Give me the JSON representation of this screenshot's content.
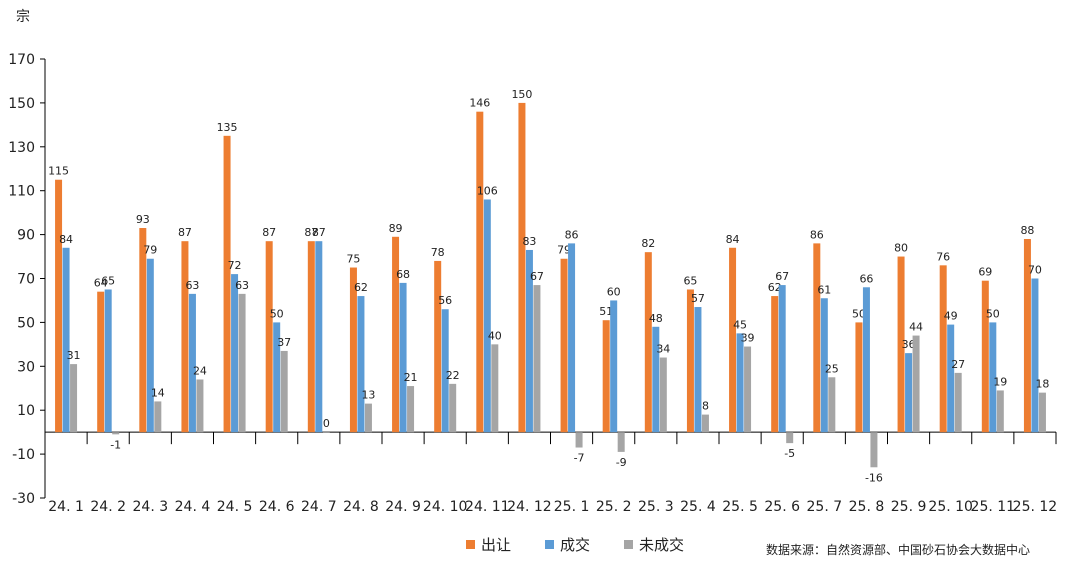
{
  "chart_data": {
    "type": "bar",
    "unit_label": "宗",
    "categories": [
      "24. 1",
      "24. 2",
      "24. 3",
      "24. 4",
      "24. 5",
      "24. 6",
      "24. 7",
      "24. 8",
      "24. 9",
      "24. 10",
      "24. 11",
      "24. 12",
      "25. 1",
      "25. 2",
      "25. 3",
      "25. 4",
      "25. 5",
      "25. 6",
      "25. 7",
      "25. 8",
      "25. 9",
      "25. 10",
      "25. 11",
      "25. 12"
    ],
    "series": [
      {
        "name": "出让",
        "color": "#ed7d31",
        "values": [
          115,
          64,
          93,
          87,
          135,
          87,
          87,
          75,
          89,
          78,
          146,
          150,
          79,
          51,
          82,
          65,
          84,
          62,
          86,
          50,
          80,
          76,
          69,
          88
        ]
      },
      {
        "name": "成交",
        "color": "#5b9bd5",
        "values": [
          84,
          65,
          79,
          63,
          72,
          50,
          87,
          62,
          68,
          56,
          106,
          83,
          86,
          60,
          48,
          57,
          45,
          67,
          61,
          66,
          36,
          49,
          50,
          70
        ]
      },
      {
        "name": "未成交",
        "color": "#a5a5a5",
        "values": [
          31,
          -1,
          14,
          24,
          63,
          37,
          0,
          13,
          21,
          22,
          40,
          67,
          -7,
          -9,
          34,
          8,
          39,
          -5,
          25,
          -16,
          44,
          27,
          19,
          18
        ]
      }
    ],
    "ylim": [
      -30,
      170
    ],
    "yticks": [
      -30,
      -10,
      10,
      30,
      50,
      70,
      90,
      110,
      130,
      150,
      170
    ],
    "grid": false,
    "legend_position": "bottom",
    "source": "数据来源：自然资源部、中国砂石协会大数据中心"
  }
}
